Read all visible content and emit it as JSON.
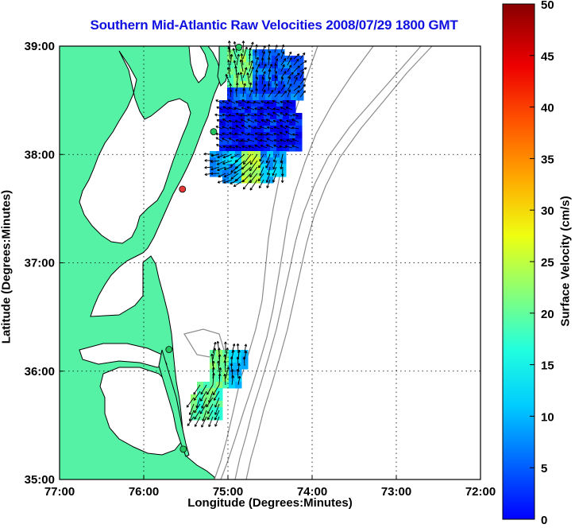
{
  "map": {
    "title": "Southern Mid-Atlantic Raw Velocities 2008/07/29 1800 GMT",
    "xlabel": "Longitude (Degrees:Minutes)",
    "ylabel": "Latitude (Degrees:Minutes)",
    "x_ticks": [
      "77:00",
      "76:00",
      "75:00",
      "74:00",
      "73:00",
      "72:00"
    ],
    "y_ticks": [
      "39:00",
      "38:00",
      "37:00",
      "36:00",
      "35:00"
    ],
    "lon_range": [
      -77,
      -72
    ],
    "lat_range": [
      35,
      39
    ],
    "colors": {
      "title": "#1010e0",
      "land": "#55f2a6",
      "coast": "#000000",
      "bathymetry": "#8c8c8c",
      "grid": "#000000",
      "station_green": "#22c55e",
      "station_red": "#e53935"
    }
  },
  "colorbar": {
    "label": "Surface Velocity (cm/s)",
    "ticks": [
      "0",
      "5",
      "10",
      "15",
      "20",
      "25",
      "30",
      "35",
      "40",
      "45",
      "50"
    ],
    "range": [
      0,
      50
    ],
    "colormap": "jet"
  },
  "stations": [
    {
      "lon": -74.87,
      "lat": 38.99,
      "status": "green"
    },
    {
      "lon": -75.17,
      "lat": 38.21,
      "status": "green"
    },
    {
      "lon": -75.54,
      "lat": 37.68,
      "status": "red"
    },
    {
      "lon": -75.7,
      "lat": 36.2,
      "status": "green"
    },
    {
      "lon": -75.53,
      "lat": 35.28,
      "status": "green"
    }
  ]
}
